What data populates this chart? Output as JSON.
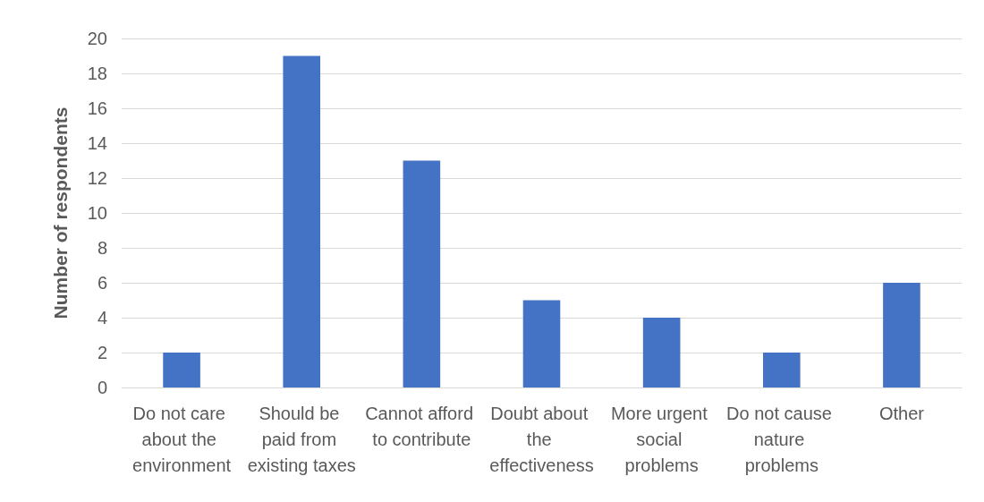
{
  "chart_data": {
    "type": "bar",
    "ylabel": "Number of respondents",
    "categories": [
      "Do not care about the environment",
      "Should be paid from existing taxes",
      "Cannot afford to contribute",
      "Doubt about the effectiveness",
      "More urgent social problems",
      "Do not cause nature problems",
      "Other"
    ],
    "values": [
      2,
      19,
      13,
      5,
      4,
      2,
      6
    ],
    "color": "#4472c4",
    "ylim": [
      0,
      20
    ],
    "yticks": [
      0,
      2,
      4,
      6,
      8,
      10,
      12,
      14,
      16,
      18,
      20
    ],
    "grid": "y"
  }
}
